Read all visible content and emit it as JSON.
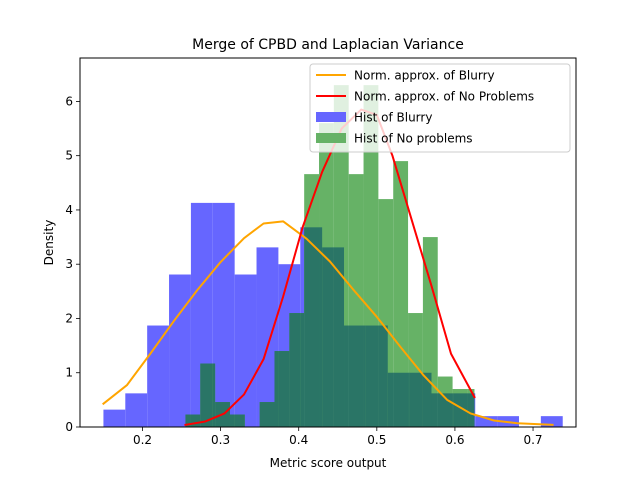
{
  "chart_data": {
    "type": "bar",
    "title": "Merge of CPBD and Laplacian Variance",
    "xlabel": "Metric score output",
    "ylabel": "Density",
    "xlim": [
      0.12,
      0.755
    ],
    "ylim": [
      0,
      6.8
    ],
    "xticks": [
      "0.2",
      "0.3",
      "0.4",
      "0.5",
      "0.6",
      "0.7"
    ],
    "xtick_values": [
      0.2,
      0.3,
      0.4,
      0.5,
      0.6,
      0.7
    ],
    "yticks": [
      "0",
      "1",
      "2",
      "3",
      "4",
      "5",
      "6"
    ],
    "ytick_values": [
      0,
      1,
      2,
      3,
      4,
      5,
      6
    ],
    "grid": false,
    "legend_position": "top-right",
    "colors": {
      "hist_blurry": "#6666ff",
      "hist_noproblems": "#66b266",
      "overlap": "#2a7566",
      "norm_blurry": "#ffa500",
      "norm_noproblems": "#ff0000"
    },
    "legend": [
      {
        "label": "Norm. approx. of Blurry",
        "kind": "line",
        "color": "#ffa500"
      },
      {
        "label": "Norm. approx. of No Problems",
        "kind": "line",
        "color": "#ff0000"
      },
      {
        "label": "Hist of Blurry",
        "kind": "patch",
        "color": "#6666ff"
      },
      {
        "label": "Hist of No problems",
        "kind": "patch",
        "color": "#66b266"
      }
    ],
    "histograms": [
      {
        "name": "Hist of Blurry",
        "color": "#6666ff",
        "bins": [
          {
            "x0": 0.15,
            "x1": 0.178,
            "y": 0.32
          },
          {
            "x0": 0.178,
            "x1": 0.206,
            "y": 0.62
          },
          {
            "x0": 0.206,
            "x1": 0.234,
            "y": 1.87
          },
          {
            "x0": 0.234,
            "x1": 0.262,
            "y": 2.81
          },
          {
            "x0": 0.262,
            "x1": 0.29,
            "y": 4.13
          },
          {
            "x0": 0.29,
            "x1": 0.318,
            "y": 4.13
          },
          {
            "x0": 0.318,
            "x1": 0.346,
            "y": 2.81
          },
          {
            "x0": 0.346,
            "x1": 0.374,
            "y": 3.31
          },
          {
            "x0": 0.374,
            "x1": 0.402,
            "y": 3.0
          },
          {
            "x0": 0.402,
            "x1": 0.43,
            "y": 3.68
          },
          {
            "x0": 0.43,
            "x1": 0.458,
            "y": 3.31
          },
          {
            "x0": 0.458,
            "x1": 0.486,
            "y": 1.87
          },
          {
            "x0": 0.486,
            "x1": 0.514,
            "y": 1.87
          },
          {
            "x0": 0.514,
            "x1": 0.542,
            "y": 1.0
          },
          {
            "x0": 0.542,
            "x1": 0.57,
            "y": 1.0
          },
          {
            "x0": 0.57,
            "x1": 0.598,
            "y": 0.62
          },
          {
            "x0": 0.598,
            "x1": 0.626,
            "y": 0.62
          },
          {
            "x0": 0.626,
            "x1": 0.654,
            "y": 0.2
          },
          {
            "x0": 0.654,
            "x1": 0.682,
            "y": 0.2
          },
          {
            "x0": 0.682,
            "x1": 0.71,
            "y": 0.0
          },
          {
            "x0": 0.71,
            "x1": 0.738,
            "y": 0.2
          }
        ]
      },
      {
        "name": "Hist of No problems",
        "color": "#66b266",
        "bins": [
          {
            "x0": 0.255,
            "x1": 0.274,
            "y": 0.23
          },
          {
            "x0": 0.274,
            "x1": 0.293,
            "y": 1.17
          },
          {
            "x0": 0.293,
            "x1": 0.312,
            "y": 0.46
          },
          {
            "x0": 0.312,
            "x1": 0.331,
            "y": 0.23
          },
          {
            "x0": 0.331,
            "x1": 0.35,
            "y": 0.0
          },
          {
            "x0": 0.35,
            "x1": 0.369,
            "y": 0.46
          },
          {
            "x0": 0.369,
            "x1": 0.388,
            "y": 1.4
          },
          {
            "x0": 0.388,
            "x1": 0.407,
            "y": 2.1
          },
          {
            "x0": 0.407,
            "x1": 0.426,
            "y": 4.66
          },
          {
            "x0": 0.426,
            "x1": 0.445,
            "y": 5.6
          },
          {
            "x0": 0.445,
            "x1": 0.464,
            "y": 6.3
          },
          {
            "x0": 0.464,
            "x1": 0.483,
            "y": 4.66
          },
          {
            "x0": 0.483,
            "x1": 0.502,
            "y": 6.3
          },
          {
            "x0": 0.502,
            "x1": 0.521,
            "y": 4.2
          },
          {
            "x0": 0.521,
            "x1": 0.54,
            "y": 4.9
          },
          {
            "x0": 0.54,
            "x1": 0.559,
            "y": 2.1
          },
          {
            "x0": 0.559,
            "x1": 0.578,
            "y": 3.5
          },
          {
            "x0": 0.578,
            "x1": 0.597,
            "y": 0.93
          },
          {
            "x0": 0.597,
            "x1": 0.616,
            "y": 0.7
          },
          {
            "x0": 0.616,
            "x1": 0.625,
            "y": 0.7
          }
        ]
      }
    ],
    "series": [
      {
        "name": "Norm. approx. of Blurry",
        "type": "line",
        "color": "#ffa500",
        "x": [
          0.15,
          0.18,
          0.21,
          0.24,
          0.27,
          0.3,
          0.33,
          0.355,
          0.38,
          0.41,
          0.44,
          0.47,
          0.5,
          0.53,
          0.56,
          0.59,
          0.62,
          0.65,
          0.68,
          0.725
        ],
        "y": [
          0.43,
          0.77,
          1.35,
          1.95,
          2.52,
          3.04,
          3.48,
          3.75,
          3.79,
          3.47,
          3.05,
          2.53,
          2.03,
          1.48,
          0.95,
          0.5,
          0.25,
          0.12,
          0.07,
          0.04
        ]
      },
      {
        "name": "Norm. approx. of No Problems",
        "type": "line",
        "color": "#ff0000",
        "x": [
          0.255,
          0.28,
          0.305,
          0.33,
          0.355,
          0.38,
          0.405,
          0.43,
          0.455,
          0.48,
          0.5,
          0.52,
          0.545,
          0.57,
          0.595,
          0.625
        ],
        "y": [
          0.04,
          0.1,
          0.25,
          0.6,
          1.25,
          2.4,
          3.68,
          4.7,
          5.5,
          5.85,
          5.75,
          5.0,
          3.8,
          2.6,
          1.35,
          0.55
        ]
      }
    ]
  }
}
